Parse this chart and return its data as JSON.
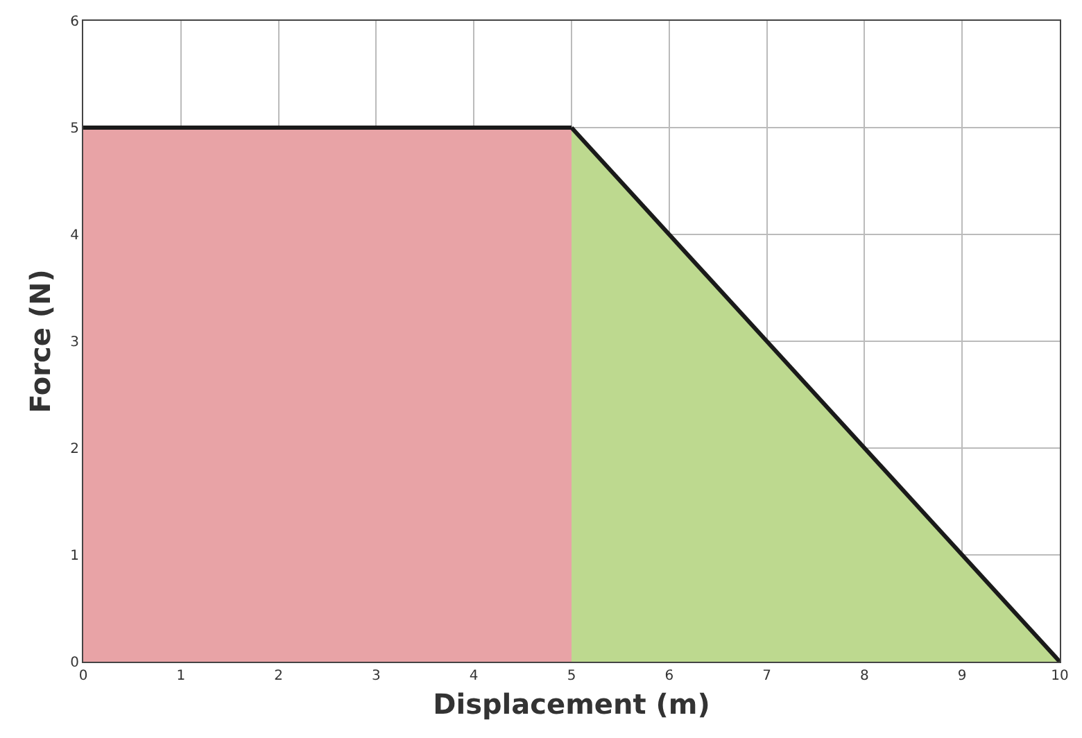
{
  "chart_data": {
    "type": "area",
    "xlabel": "Displacement (m)",
    "ylabel": "Force (N)",
    "series": [
      {
        "color": "#e8a3a6",
        "x": [
          0,
          5
        ],
        "values": [
          5,
          5
        ]
      },
      {
        "color": "#bdd98f",
        "x": [
          5,
          10
        ],
        "values": [
          5,
          0
        ]
      }
    ],
    "xlim": [
      0,
      10
    ],
    "ylim": [
      0,
      6
    ],
    "xticks": [
      0,
      1,
      2,
      3,
      4,
      5,
      6,
      7,
      8,
      9,
      10
    ],
    "yticks": [
      0,
      1,
      2,
      3,
      4,
      5,
      6
    ],
    "grid": true,
    "marker": "none",
    "line_style": "solid"
  }
}
